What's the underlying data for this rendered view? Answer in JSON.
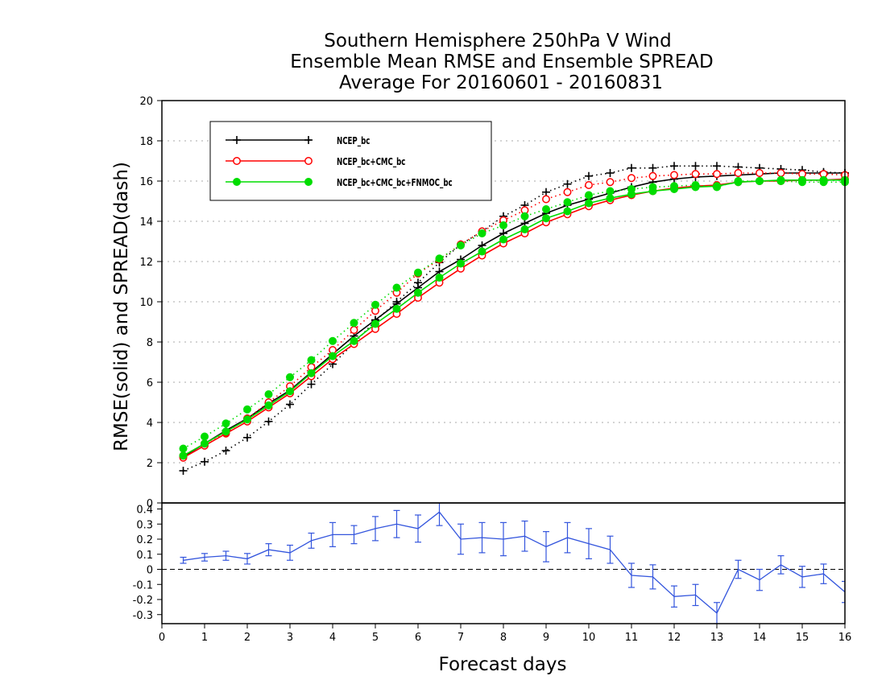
{
  "chart_data": [
    {
      "type": "line",
      "title_lines": [
        "Southern Hemisphere 250hPa V Wind",
        "Ensemble Mean RMSE and Ensemble SPREAD",
        "Average For 20160601 - 20160831"
      ],
      "ylabel": "RMSE(solid)  and  SPREAD(dash)",
      "xlim": [
        0,
        16
      ],
      "ylim": [
        0,
        20
      ],
      "yticks": [
        0,
        2,
        4,
        6,
        8,
        10,
        12,
        14,
        16,
        18,
        20
      ],
      "grid": true,
      "legend_position": "top-left",
      "x": [
        0.5,
        1,
        1.5,
        2,
        2.5,
        3,
        3.5,
        4,
        4.5,
        5,
        5.5,
        6,
        6.5,
        7,
        7.5,
        8,
        8.5,
        9,
        9.5,
        10,
        10.5,
        11,
        11.5,
        12,
        12.5,
        13,
        13.5,
        14,
        14.5,
        15,
        15.5,
        16
      ],
      "series": [
        {
          "name": "NCEP_bc",
          "color": "#000000",
          "marker": "plus",
          "rmse": [
            2.3,
            2.95,
            3.6,
            4.2,
            4.95,
            5.6,
            6.5,
            7.4,
            8.3,
            9.1,
            9.9,
            10.7,
            11.5,
            12.1,
            12.8,
            13.4,
            13.9,
            14.4,
            14.8,
            15.1,
            15.4,
            15.7,
            15.95,
            16.1,
            16.2,
            16.25,
            16.3,
            16.35,
            16.4,
            16.4,
            16.4,
            16.4
          ],
          "spread": [
            1.6,
            2.05,
            2.6,
            3.25,
            4.05,
            4.9,
            5.9,
            6.9,
            7.95,
            9.05,
            10.0,
            10.95,
            11.95,
            12.85,
            13.5,
            14.25,
            14.8,
            15.45,
            15.85,
            16.25,
            16.4,
            16.65,
            16.65,
            16.75,
            16.75,
            16.75,
            16.7,
            16.65,
            16.6,
            16.55,
            16.45,
            16.4
          ]
        },
        {
          "name": "NCEP_bc+CMC_bc",
          "color": "#ff0000",
          "marker": "open-circle",
          "rmse": [
            2.25,
            2.85,
            3.45,
            4.05,
            4.75,
            5.45,
            6.3,
            7.15,
            7.9,
            8.65,
            9.4,
            10.2,
            10.95,
            11.65,
            12.3,
            12.9,
            13.4,
            13.95,
            14.35,
            14.75,
            15.05,
            15.3,
            15.5,
            15.65,
            15.75,
            15.8,
            15.95,
            16.0,
            16.0,
            16.05,
            16.05,
            16.1
          ],
          "spread": [
            2.35,
            2.95,
            3.5,
            4.2,
            5.0,
            5.8,
            6.75,
            7.6,
            8.6,
            9.55,
            10.45,
            11.4,
            12.1,
            12.85,
            13.5,
            14.05,
            14.55,
            15.1,
            15.45,
            15.8,
            15.95,
            16.15,
            16.25,
            16.3,
            16.35,
            16.35,
            16.4,
            16.4,
            16.4,
            16.35,
            16.35,
            16.3
          ]
        },
        {
          "name": "NCEP_bc+CMC_bc+FNMOC_bc",
          "color": "#00dd00",
          "marker": "filled-circle",
          "rmse": [
            2.35,
            2.95,
            3.55,
            4.15,
            4.85,
            5.55,
            6.45,
            7.3,
            8.05,
            8.9,
            9.65,
            10.45,
            11.2,
            11.9,
            12.5,
            13.1,
            13.6,
            14.15,
            14.5,
            14.9,
            15.15,
            15.35,
            15.5,
            15.6,
            15.7,
            15.75,
            15.95,
            16.0,
            16.05,
            16.05,
            16.05,
            16.05
          ],
          "spread": [
            2.7,
            3.3,
            3.95,
            4.65,
            5.4,
            6.25,
            7.1,
            8.05,
            8.95,
            9.85,
            10.7,
            11.45,
            12.15,
            12.8,
            13.4,
            13.8,
            14.25,
            14.6,
            14.95,
            15.3,
            15.5,
            15.6,
            15.7,
            15.75,
            15.8,
            15.7,
            16.0,
            16.0,
            16.0,
            15.95,
            15.95,
            15.95
          ]
        }
      ]
    },
    {
      "type": "line",
      "xlabel": "Forecast days",
      "xlim": [
        0,
        16
      ],
      "xticks": [
        0,
        1,
        2,
        3,
        4,
        5,
        6,
        7,
        8,
        9,
        10,
        11,
        12,
        13,
        14,
        15,
        16
      ],
      "ylim": [
        -0.36,
        0.44
      ],
      "yticks": [
        -0.3,
        -0.2,
        -0.1,
        0,
        0.1,
        0.2,
        0.3,
        0.4
      ],
      "ytick_labels": [
        "-0.3",
        "-0.2",
        "-0.1",
        "0",
        "0.1",
        "0.2",
        "0.3",
        "0.4"
      ],
      "zero_line": "dashed",
      "series": [
        {
          "color": "#3355dd",
          "x": [
            0.5,
            1,
            1.5,
            2,
            2.5,
            3,
            3.5,
            4,
            4.5,
            5,
            5.5,
            6,
            6.5,
            7,
            7.5,
            8,
            8.5,
            9,
            9.5,
            10,
            10.5,
            11,
            11.5,
            12,
            12.5,
            13,
            13.5,
            14,
            14.5,
            15,
            15.5,
            16
          ],
          "values": [
            0.06,
            0.08,
            0.09,
            0.07,
            0.13,
            0.11,
            0.19,
            0.23,
            0.23,
            0.27,
            0.3,
            0.27,
            0.38,
            0.2,
            0.21,
            0.2,
            0.22,
            0.15,
            0.21,
            0.17,
            0.13,
            -0.04,
            -0.05,
            -0.18,
            -0.17,
            -0.29,
            0.0,
            -0.07,
            0.03,
            -0.05,
            -0.03,
            -0.15
          ],
          "errors": [
            0.02,
            0.025,
            0.03,
            0.035,
            0.04,
            0.05,
            0.05,
            0.08,
            0.06,
            0.08,
            0.09,
            0.09,
            0.09,
            0.1,
            0.1,
            0.11,
            0.1,
            0.1,
            0.1,
            0.1,
            0.09,
            0.08,
            0.08,
            0.07,
            0.07,
            0.07,
            0.06,
            0.07,
            0.06,
            0.07,
            0.065,
            0.07
          ]
        }
      ]
    }
  ]
}
